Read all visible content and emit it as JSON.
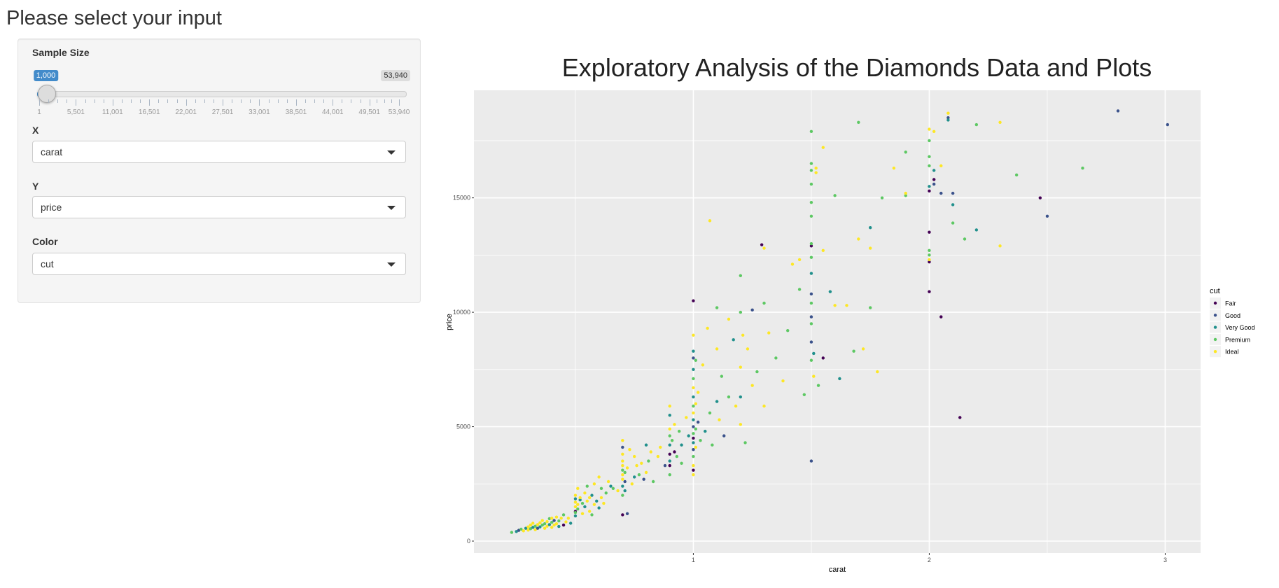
{
  "sidebar": {
    "title": "Please select your input",
    "sample_size": {
      "label": "Sample Size",
      "min": 1,
      "max": 53940,
      "value": 1000,
      "value_label": "1,000",
      "max_label": "53,940",
      "ticks": [
        "1",
        "5,501",
        "11,001",
        "16,501",
        "22,001",
        "27,501",
        "33,001",
        "38,501",
        "44,001",
        "49,501",
        "53,940"
      ],
      "tick_values": [
        1,
        5501,
        11001,
        16501,
        22001,
        27501,
        33001,
        38501,
        44001,
        49501,
        53940
      ]
    },
    "x": {
      "label": "X",
      "value": "carat"
    },
    "y": {
      "label": "Y",
      "value": "price"
    },
    "color": {
      "label": "Color",
      "value": "cut"
    }
  },
  "chart_data": {
    "type": "scatter",
    "title": "Exploratory Analysis of the Diamonds Data and Plots",
    "xlabel": "carat",
    "ylabel": "price",
    "xlim": [
      0.07,
      3.15
    ],
    "ylim": [
      -520,
      19700
    ],
    "xticks": [
      1,
      2,
      3
    ],
    "xtick_labels": [
      "1",
      "2",
      "3"
    ],
    "yticks": [
      0,
      5000,
      10000,
      15000
    ],
    "ytick_labels": [
      "0",
      "5000",
      "10000",
      "15000"
    ],
    "grid": true,
    "legend": {
      "title": "cut",
      "placement": "right",
      "entries": [
        "Fair",
        "Good",
        "Very Good",
        "Premium",
        "Ideal"
      ]
    },
    "colors": [
      "#440154",
      "#3B528B",
      "#21908C",
      "#5DC863",
      "#FDE725"
    ],
    "points_format": "[carat, price, cut_index]",
    "points": [
      [
        0.23,
        380,
        3
      ],
      [
        0.25,
        420,
        2
      ],
      [
        0.26,
        470,
        1
      ],
      [
        0.27,
        520,
        3
      ],
      [
        0.28,
        450,
        4
      ],
      [
        0.29,
        560,
        2
      ],
      [
        0.3,
        480,
        4
      ],
      [
        0.3,
        620,
        4
      ],
      [
        0.31,
        540,
        3
      ],
      [
        0.31,
        700,
        4
      ],
      [
        0.32,
        600,
        2
      ],
      [
        0.32,
        780,
        4
      ],
      [
        0.33,
        500,
        4
      ],
      [
        0.33,
        650,
        3
      ],
      [
        0.34,
        720,
        4
      ],
      [
        0.34,
        560,
        1
      ],
      [
        0.35,
        800,
        4
      ],
      [
        0.35,
        620,
        2
      ],
      [
        0.36,
        700,
        3
      ],
      [
        0.36,
        900,
        4
      ],
      [
        0.37,
        560,
        4
      ],
      [
        0.37,
        760,
        3
      ],
      [
        0.38,
        650,
        4
      ],
      [
        0.38,
        850,
        4
      ],
      [
        0.39,
        980,
        3
      ],
      [
        0.39,
        720,
        2
      ],
      [
        0.4,
        600,
        4
      ],
      [
        0.4,
        1000,
        4
      ],
      [
        0.4,
        820,
        3
      ],
      [
        0.41,
        700,
        4
      ],
      [
        0.41,
        900,
        1
      ],
      [
        0.42,
        760,
        4
      ],
      [
        0.42,
        1050,
        4
      ],
      [
        0.43,
        640,
        2
      ],
      [
        0.43,
        880,
        3
      ],
      [
        0.44,
        1000,
        4
      ],
      [
        0.45,
        700,
        0
      ],
      [
        0.45,
        1150,
        3
      ],
      [
        0.46,
        840,
        4
      ],
      [
        0.47,
        1000,
        4
      ],
      [
        0.48,
        780,
        2
      ],
      [
        0.5,
        1300,
        0
      ],
      [
        0.5,
        1500,
        4
      ],
      [
        0.5,
        1700,
        4
      ],
      [
        0.5,
        1850,
        2
      ],
      [
        0.5,
        2000,
        4
      ],
      [
        0.5,
        1100,
        2
      ],
      [
        0.5,
        1250,
        3
      ],
      [
        0.51,
        1600,
        4
      ],
      [
        0.51,
        1400,
        3
      ],
      [
        0.51,
        2300,
        4
      ],
      [
        0.52,
        1800,
        2
      ],
      [
        0.52,
        1900,
        4
      ],
      [
        0.53,
        1200,
        4
      ],
      [
        0.53,
        1650,
        3
      ],
      [
        0.54,
        2100,
        4
      ],
      [
        0.54,
        1500,
        2
      ],
      [
        0.55,
        1750,
        4
      ],
      [
        0.55,
        2400,
        3
      ],
      [
        0.56,
        1900,
        4
      ],
      [
        0.56,
        1300,
        4
      ],
      [
        0.57,
        2000,
        2
      ],
      [
        0.57,
        1150,
        3
      ],
      [
        0.58,
        1600,
        4
      ],
      [
        0.58,
        2500,
        4
      ],
      [
        0.59,
        1750,
        2
      ],
      [
        0.6,
        1450,
        2
      ],
      [
        0.6,
        2800,
        4
      ],
      [
        0.61,
        2300,
        3
      ],
      [
        0.61,
        1900,
        4
      ],
      [
        0.62,
        1650,
        4
      ],
      [
        0.63,
        2100,
        3
      ],
      [
        0.64,
        2600,
        4
      ],
      [
        0.65,
        2400,
        2
      ],
      [
        0.66,
        2300,
        3
      ],
      [
        0.68,
        2200,
        4
      ],
      [
        0.7,
        2000,
        3
      ],
      [
        0.7,
        2400,
        2
      ],
      [
        0.7,
        2700,
        4
      ],
      [
        0.7,
        2900,
        4
      ],
      [
        0.7,
        3100,
        3
      ],
      [
        0.7,
        3300,
        4
      ],
      [
        0.7,
        3500,
        4
      ],
      [
        0.7,
        3800,
        4
      ],
      [
        0.7,
        4400,
        4
      ],
      [
        0.7,
        4100,
        1
      ],
      [
        0.7,
        1150,
        0
      ],
      [
        0.71,
        2600,
        1
      ],
      [
        0.71,
        3000,
        3
      ],
      [
        0.71,
        2200,
        2
      ],
      [
        0.72,
        3200,
        4
      ],
      [
        0.72,
        1200,
        1
      ],
      [
        0.73,
        4000,
        4
      ],
      [
        0.74,
        2500,
        4
      ],
      [
        0.75,
        2800,
        2
      ],
      [
        0.75,
        3700,
        4
      ],
      [
        0.76,
        3300,
        4
      ],
      [
        0.77,
        2900,
        3
      ],
      [
        0.78,
        3400,
        4
      ],
      [
        0.79,
        2700,
        1
      ],
      [
        0.8,
        4200,
        2
      ],
      [
        0.8,
        3000,
        4
      ],
      [
        0.81,
        3500,
        3
      ],
      [
        0.82,
        3900,
        4
      ],
      [
        0.83,
        2600,
        3
      ],
      [
        0.85,
        3700,
        4
      ],
      [
        0.86,
        4100,
        4
      ],
      [
        0.88,
        3300,
        1
      ],
      [
        0.9,
        2900,
        3
      ],
      [
        0.9,
        3500,
        2
      ],
      [
        0.9,
        3800,
        0
      ],
      [
        0.9,
        4200,
        2
      ],
      [
        0.9,
        4600,
        3
      ],
      [
        0.9,
        4900,
        4
      ],
      [
        0.9,
        5500,
        2
      ],
      [
        0.9,
        5900,
        4
      ],
      [
        0.9,
        3300,
        0
      ],
      [
        0.91,
        4400,
        3
      ],
      [
        0.92,
        3900,
        0
      ],
      [
        0.92,
        5100,
        4
      ],
      [
        0.93,
        3700,
        3
      ],
      [
        0.94,
        4800,
        3
      ],
      [
        0.95,
        4200,
        2
      ],
      [
        0.95,
        3400,
        3
      ],
      [
        0.97,
        5400,
        4
      ],
      [
        0.98,
        4600,
        2
      ],
      [
        1.0,
        2900,
        4
      ],
      [
        1.0,
        3300,
        4
      ],
      [
        1.0,
        3700,
        3
      ],
      [
        1.0,
        4000,
        1
      ],
      [
        1.0,
        4300,
        2
      ],
      [
        1.0,
        4500,
        0
      ],
      [
        1.0,
        4700,
        3
      ],
      [
        1.0,
        5000,
        1
      ],
      [
        1.0,
        5300,
        2
      ],
      [
        1.0,
        5600,
        4
      ],
      [
        1.0,
        5900,
        3
      ],
      [
        1.0,
        6300,
        2
      ],
      [
        1.0,
        6700,
        4
      ],
      [
        1.0,
        7100,
        3
      ],
      [
        1.0,
        7500,
        2
      ],
      [
        1.0,
        8000,
        1
      ],
      [
        1.0,
        8300,
        2
      ],
      [
        1.0,
        9000,
        4
      ],
      [
        1.0,
        10500,
        0
      ],
      [
        1.0,
        3100,
        0
      ],
      [
        1.01,
        4100,
        4
      ],
      [
        1.01,
        4900,
        3
      ],
      [
        1.01,
        6000,
        4
      ],
      [
        1.01,
        7900,
        3
      ],
      [
        1.02,
        5200,
        1
      ],
      [
        1.02,
        6500,
        4
      ],
      [
        1.03,
        4400,
        3
      ],
      [
        1.04,
        7700,
        4
      ],
      [
        1.05,
        4800,
        2
      ],
      [
        1.06,
        9300,
        4
      ],
      [
        1.07,
        14000,
        4
      ],
      [
        1.07,
        5600,
        3
      ],
      [
        1.08,
        4200,
        3
      ],
      [
        1.1,
        10200,
        3
      ],
      [
        1.1,
        6100,
        2
      ],
      [
        1.1,
        8400,
        4
      ],
      [
        1.11,
        5300,
        4
      ],
      [
        1.12,
        7200,
        3
      ],
      [
        1.13,
        4600,
        1
      ],
      [
        1.15,
        9700,
        4
      ],
      [
        1.15,
        6300,
        3
      ],
      [
        1.17,
        8800,
        2
      ],
      [
        1.18,
        5900,
        4
      ],
      [
        1.2,
        10000,
        3
      ],
      [
        1.2,
        11600,
        3
      ],
      [
        1.2,
        7600,
        4
      ],
      [
        1.2,
        6300,
        2
      ],
      [
        1.2,
        5100,
        4
      ],
      [
        1.21,
        9000,
        4
      ],
      [
        1.22,
        4300,
        3
      ],
      [
        1.23,
        8400,
        4
      ],
      [
        1.25,
        10100,
        1
      ],
      [
        1.25,
        6800,
        4
      ],
      [
        1.27,
        7400,
        3
      ],
      [
        1.29,
        12950,
        0
      ],
      [
        1.3,
        12800,
        4
      ],
      [
        1.3,
        10400,
        3
      ],
      [
        1.3,
        5900,
        4
      ],
      [
        1.32,
        9100,
        4
      ],
      [
        1.35,
        8000,
        3
      ],
      [
        1.38,
        7000,
        4
      ],
      [
        1.4,
        9200,
        3
      ],
      [
        1.42,
        12100,
        4
      ],
      [
        1.45,
        12300,
        4
      ],
      [
        1.45,
        11000,
        3
      ],
      [
        1.47,
        6400,
        3
      ],
      [
        1.5,
        3500,
        1
      ],
      [
        1.5,
        7900,
        3
      ],
      [
        1.5,
        8700,
        1
      ],
      [
        1.5,
        9500,
        3
      ],
      [
        1.5,
        9800,
        1
      ],
      [
        1.5,
        10400,
        3
      ],
      [
        1.5,
        10800,
        1
      ],
      [
        1.5,
        11700,
        2
      ],
      [
        1.5,
        12400,
        3
      ],
      [
        1.5,
        12900,
        0
      ],
      [
        1.5,
        13000,
        3
      ],
      [
        1.5,
        14200,
        3
      ],
      [
        1.5,
        14800,
        3
      ],
      [
        1.5,
        15600,
        3
      ],
      [
        1.5,
        16200,
        3
      ],
      [
        1.5,
        16500,
        3
      ],
      [
        1.5,
        17900,
        3
      ],
      [
        1.51,
        8200,
        2
      ],
      [
        1.51,
        7200,
        4
      ],
      [
        1.52,
        16300,
        4
      ],
      [
        1.52,
        16100,
        4
      ],
      [
        1.53,
        6800,
        3
      ],
      [
        1.55,
        8000,
        0
      ],
      [
        1.55,
        17200,
        4
      ],
      [
        1.55,
        12700,
        4
      ],
      [
        1.58,
        10900,
        2
      ],
      [
        1.6,
        15100,
        3
      ],
      [
        1.6,
        10300,
        4
      ],
      [
        1.62,
        7100,
        2
      ],
      [
        1.65,
        10300,
        4
      ],
      [
        1.68,
        8300,
        3
      ],
      [
        1.7,
        18300,
        3
      ],
      [
        1.7,
        13200,
        4
      ],
      [
        1.72,
        8400,
        4
      ],
      [
        1.75,
        13700,
        2
      ],
      [
        1.75,
        12800,
        4
      ],
      [
        1.75,
        10200,
        3
      ],
      [
        1.78,
        7400,
        4
      ],
      [
        1.8,
        15000,
        3
      ],
      [
        1.85,
        16300,
        4
      ],
      [
        1.9,
        17000,
        3
      ],
      [
        1.9,
        15100,
        3
      ],
      [
        1.9,
        15200,
        4
      ],
      [
        2.0,
        10900,
        0
      ],
      [
        2.0,
        12200,
        0
      ],
      [
        2.0,
        12300,
        4
      ],
      [
        2.0,
        12500,
        3
      ],
      [
        2.0,
        12700,
        3
      ],
      [
        2.0,
        13500,
        0
      ],
      [
        2.0,
        15300,
        0
      ],
      [
        2.0,
        15500,
        2
      ],
      [
        2.0,
        16400,
        3
      ],
      [
        2.0,
        16800,
        3
      ],
      [
        2.0,
        17500,
        3
      ],
      [
        2.0,
        18000,
        4
      ],
      [
        2.02,
        15800,
        0
      ],
      [
        2.02,
        15600,
        1
      ],
      [
        2.02,
        17900,
        4
      ],
      [
        2.02,
        16200,
        2
      ],
      [
        2.05,
        9800,
        0
      ],
      [
        2.05,
        15200,
        1
      ],
      [
        2.05,
        16400,
        4
      ],
      [
        2.08,
        18700,
        4
      ],
      [
        2.08,
        18500,
        1
      ],
      [
        2.08,
        18400,
        2
      ],
      [
        2.1,
        14700,
        2
      ],
      [
        2.1,
        15200,
        1
      ],
      [
        2.1,
        13900,
        3
      ],
      [
        2.13,
        5400,
        0
      ],
      [
        2.15,
        13200,
        3
      ],
      [
        2.2,
        18200,
        3
      ],
      [
        2.2,
        13600,
        2
      ],
      [
        2.3,
        18300,
        4
      ],
      [
        2.3,
        12900,
        4
      ],
      [
        2.37,
        16000,
        3
      ],
      [
        2.47,
        15000,
        0
      ],
      [
        2.5,
        14200,
        1
      ],
      [
        2.65,
        16300,
        3
      ],
      [
        2.8,
        18800,
        1
      ],
      [
        3.01,
        18200,
        1
      ]
    ]
  }
}
